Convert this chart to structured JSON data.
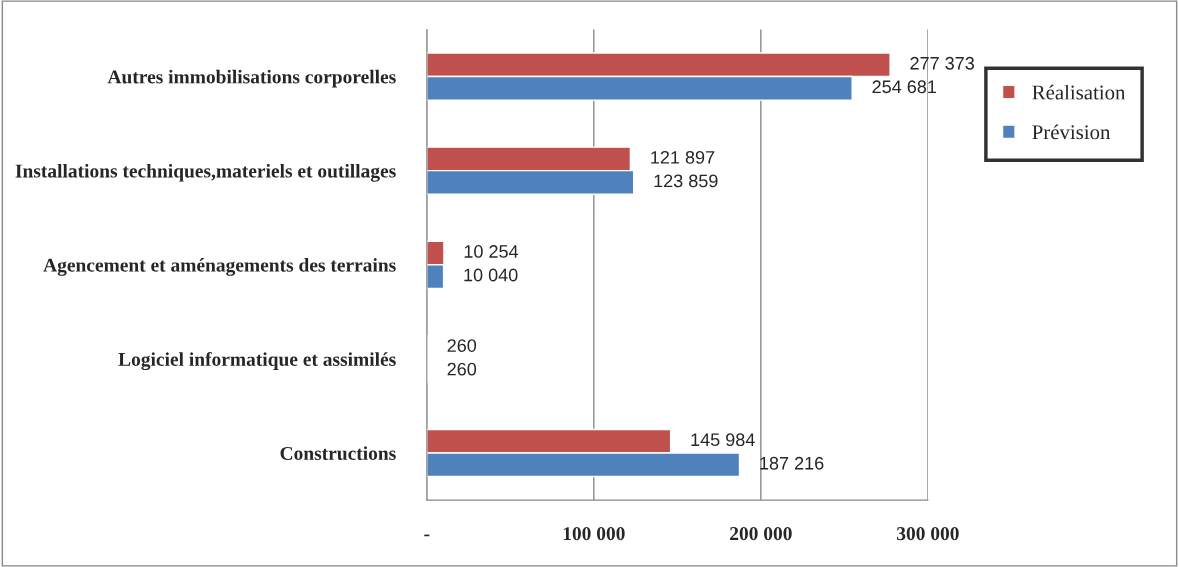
{
  "chart_data": {
    "type": "bar",
    "orientation": "horizontal",
    "categories": [
      "Autres immobilisations corporelles",
      "Installations techniques,materiels et outillages",
      "Agencement et aménagements des terrains",
      "Logiciel informatique et assimilés",
      "Constructions"
    ],
    "series": [
      {
        "name": "Réalisation",
        "color": "#c0504d",
        "values": [
          277373,
          121897,
          10254,
          260,
          145984
        ],
        "value_labels": [
          "277 373",
          "121 897",
          "10 254",
          "260",
          "145 984"
        ]
      },
      {
        "name": "Prévision",
        "color": "#4f81bd",
        "values": [
          254681,
          123859,
          10040,
          260,
          187216
        ],
        "value_labels": [
          "254 681",
          "123 859",
          "10 040",
          "260",
          "187 216"
        ]
      }
    ],
    "xlim": [
      0,
      300000
    ],
    "xticks": [
      {
        "value": 0,
        "label": "-"
      },
      {
        "value": 100000,
        "label": "100 000"
      },
      {
        "value": 200000,
        "label": "200 000"
      },
      {
        "value": 300000,
        "label": "300 000"
      }
    ],
    "grid": "x",
    "legend": "right"
  }
}
